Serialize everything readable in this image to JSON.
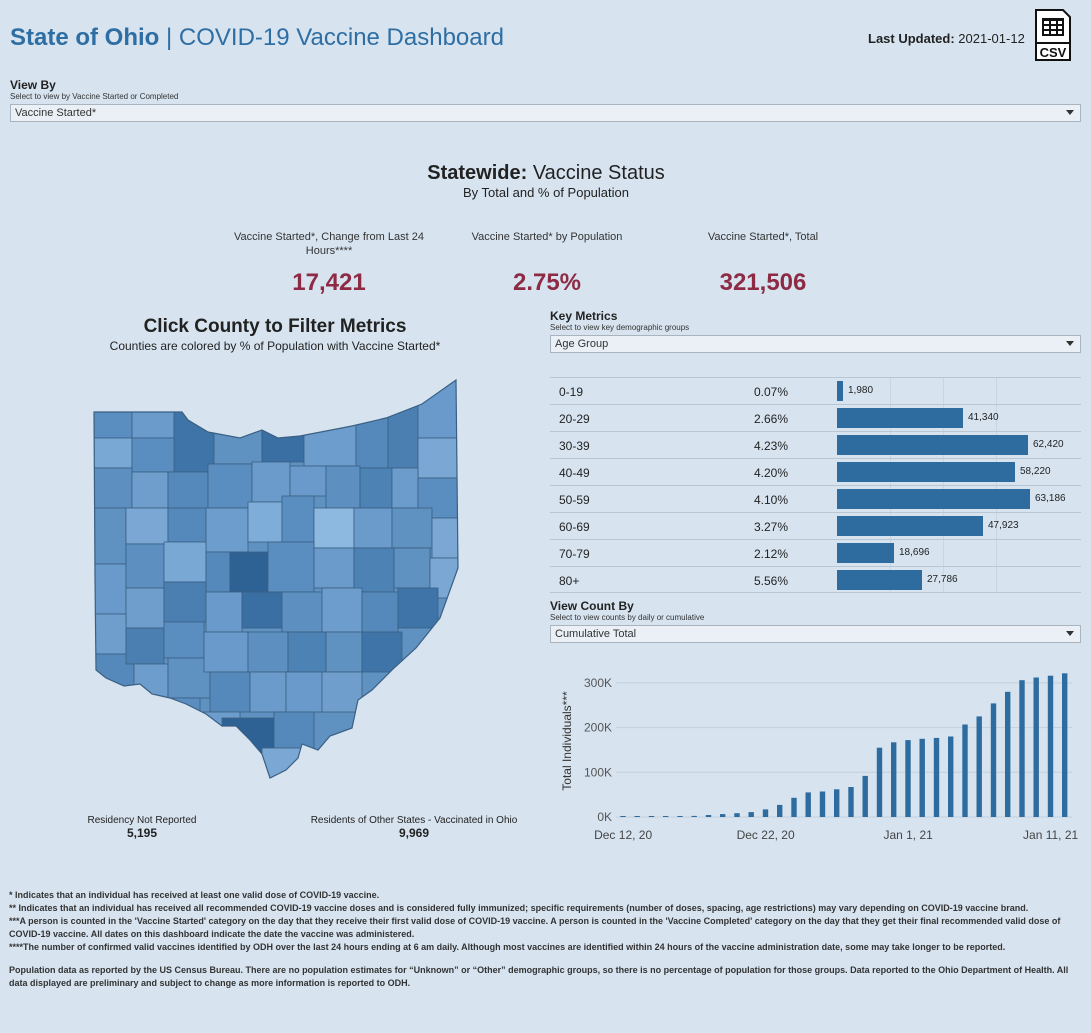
{
  "header": {
    "title_bold": "State of Ohio",
    "title_sep": " | ",
    "title_rest": "COVID-19 Vaccine Dashboard",
    "last_updated_label": "Last Updated:",
    "last_updated_value": "2021-01-12",
    "csv_label": "CSV"
  },
  "view_by": {
    "label": "View By",
    "sub": "Select to view by Vaccine Started or Completed",
    "selected": "Vaccine Started*"
  },
  "statewide": {
    "title_bold": "Statewide:",
    "title_rest": " Vaccine Status",
    "subtitle": "By Total and % of Population"
  },
  "kpis": [
    {
      "label": "Vaccine Started*, Change from Last 24 Hours****",
      "value": "17,421"
    },
    {
      "label": "Vaccine Started* by Population",
      "value": "2.75%"
    },
    {
      "label": "Vaccine Started*, Total",
      "value": "321,506"
    }
  ],
  "map": {
    "title": "Click County to Filter Metrics",
    "subtitle": "Counties are colored by % of Population with Vaccine Started*",
    "residency_label": "Residency Not Reported",
    "residency_value": "5,195",
    "other_states_label": "Residents of Other States - Vaccinated in Ohio",
    "other_states_value": "9,969"
  },
  "key_metrics": {
    "label": "Key Metrics",
    "sub": "Select to view key demographic groups",
    "selected": "Age Group",
    "max_value": 63186,
    "rows": [
      {
        "group": "0-19",
        "pct": "0.07%",
        "value": 1980,
        "value_label": "1,980"
      },
      {
        "group": "20-29",
        "pct": "2.66%",
        "value": 41340,
        "value_label": "41,340"
      },
      {
        "group": "30-39",
        "pct": "4.23%",
        "value": 62420,
        "value_label": "62,420"
      },
      {
        "group": "40-49",
        "pct": "4.20%",
        "value": 58220,
        "value_label": "58,220"
      },
      {
        "group": "50-59",
        "pct": "4.10%",
        "value": 63186,
        "value_label": "63,186"
      },
      {
        "group": "60-69",
        "pct": "3.27%",
        "value": 47923,
        "value_label": "47,923"
      },
      {
        "group": "70-79",
        "pct": "2.12%",
        "value": 18696,
        "value_label": "18,696"
      },
      {
        "group": "80+",
        "pct": "5.56%",
        "value": 27786,
        "value_label": "27,786"
      }
    ]
  },
  "view_count": {
    "label": "View Count By",
    "sub": "Select to view counts by daily or cumulative",
    "selected": "Cumulative Total"
  },
  "chart_data": {
    "type": "bar",
    "title": "",
    "xlabel": "",
    "ylabel": "Total Individuals***",
    "ylim": [
      0,
      340000
    ],
    "yticks": [
      0,
      100000,
      200000,
      300000
    ],
    "ytick_labels": [
      "0K",
      "100K",
      "200K",
      "300K"
    ],
    "xtick_labels": [
      {
        "label": "Dec 12, 20",
        "index": 0
      },
      {
        "label": "Dec 22, 20",
        "index": 10
      },
      {
        "label": "Jan 1, 21",
        "index": 20
      },
      {
        "label": "Jan 11, 21",
        "index": 30
      }
    ],
    "categories": [
      "Dec 12",
      "Dec 13",
      "Dec 14",
      "Dec 15",
      "Dec 16",
      "Dec 17",
      "Dec 18",
      "Dec 19",
      "Dec 20",
      "Dec 21",
      "Dec 22",
      "Dec 23",
      "Dec 24",
      "Dec 25",
      "Dec 26",
      "Dec 27",
      "Dec 28",
      "Dec 29",
      "Dec 30",
      "Dec 31",
      "Jan 1",
      "Jan 2",
      "Jan 3",
      "Jan 4",
      "Jan 5",
      "Jan 6",
      "Jan 7",
      "Jan 8",
      "Jan 9",
      "Jan 10",
      "Jan 11",
      "Jan 12"
    ],
    "values": [
      0,
      0,
      0,
      0,
      1500,
      2500,
      4500,
      6500,
      8500,
      11000,
      17000,
      27000,
      43000,
      55000,
      57000,
      62000,
      67000,
      92000,
      155000,
      167000,
      172000,
      175000,
      177000,
      180000,
      207000,
      225000,
      254000,
      280000,
      306000,
      312000,
      316000,
      321506
    ]
  },
  "notes": [
    "* Indicates that an individual has received at least one valid dose of COVID-19 vaccine.",
    "** Indicates that an individual has received all recommended COVID-19 vaccine doses and is considered fully immunized; specific requirements (number of doses, spacing, age restrictions) may vary depending on COVID-19 vaccine brand.",
    "***A person is counted in the 'Vaccine Started' category on the day that they receive their first valid dose of COVID-19 vaccine.  A person is counted in the 'Vaccine Completed' category on the day that they get their final recommended valid dose of COVID-19 vaccine. All dates on this dashboard indicate the date the vaccine was administered.",
    "****The number of confirmed valid vaccines identified by ODH over the last 24 hours ending at 6 am daily. Although most vaccines are identified within 24 hours of the vaccine administration date, some may take longer to be reported.",
    "Population data as reported by the US Census Bureau. There are no population estimates for “Unknown” or “Other” demographic groups, so there is no percentage of population for those groups.  Data reported to the Ohio Department of Health.  All data displayed are preliminary and subject to change as more information is reported to ODH."
  ],
  "colors": {
    "accent": "#2f6ea3",
    "kpi": "#8c2b43",
    "bar": "#2e6b9e",
    "background": "#d7e4f0"
  }
}
